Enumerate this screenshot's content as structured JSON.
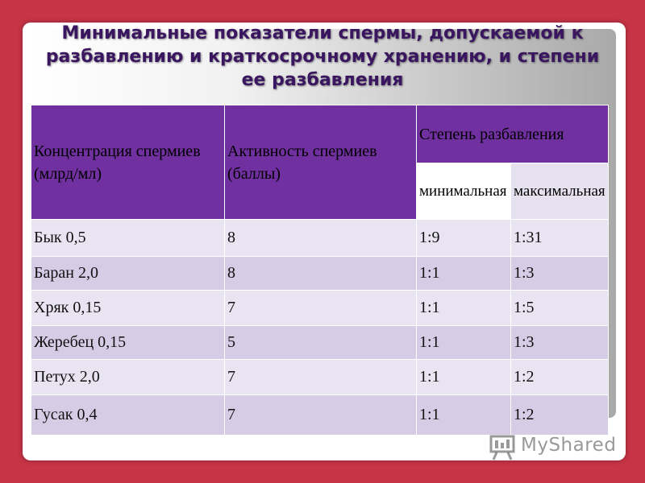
{
  "slide": {
    "title": "Минимальные показатели спермы, допускаемой к разбавлению и краткосрочному хранению, и степени ее разбавления"
  },
  "table": {
    "headers": {
      "concentration": "Концентрация спермиев (млрд/мл)",
      "activity": "Активность спермиев (баллы)",
      "dilution": "Степень разбавления",
      "min": "минимальная",
      "max": "максимальная"
    },
    "rows": [
      {
        "concentration": "Бык 0,5",
        "activity": "8",
        "min": "1:9",
        "max": "1:31"
      },
      {
        "concentration": "Баран 2,0",
        "activity": "8",
        "min": "1:1",
        "max": "1:3"
      },
      {
        "concentration": "Хряк  0,15",
        "activity": "7",
        "min": "1:1",
        "max": "1:5"
      },
      {
        "concentration": "Жеребец 0,15",
        "activity": "5",
        "min": "1:1",
        "max": "1:3"
      },
      {
        "concentration": "Петух  2,0",
        "activity": "7",
        "min": "1:1",
        "max": "1:2"
      },
      {
        "concentration": "Гусак  0,4",
        "activity": "7",
        "min": "1:1",
        "max": "1:2"
      }
    ]
  },
  "watermark": {
    "text": "MyShared",
    "icon": "presentation-board-icon"
  },
  "colors": {
    "background": "#c63446",
    "header_fill": "#7030a0",
    "row_light": "#e9e4f1",
    "row_dark": "#d7cce6",
    "title_text": "#3a1560"
  }
}
